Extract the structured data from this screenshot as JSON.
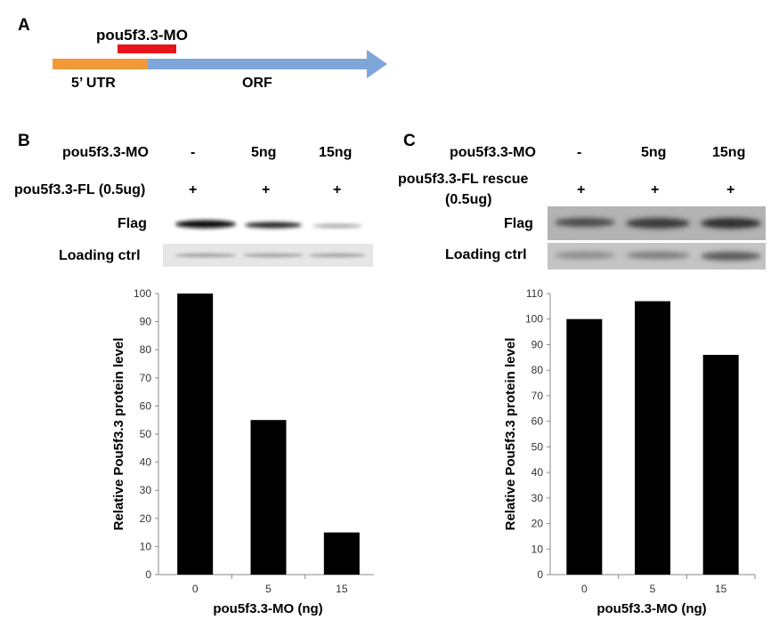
{
  "panel_a": {
    "letter": "A",
    "mo_label": "pou5f3.3-MO",
    "utr_label": "5’ UTR",
    "orf_label": "ORF",
    "colors": {
      "utr": "#f29a3a",
      "orf": "#7ea6d8",
      "mo": "#e8141c"
    }
  },
  "panel_b": {
    "letter": "B",
    "row1_label": "pou5f3.3-MO",
    "row1_values": [
      "-",
      "5ng",
      "15ng"
    ],
    "row2_label": "pou5f3.3-FL (0.5ug)",
    "row2_values": [
      "+",
      "+",
      "+"
    ],
    "blot1_label": "Flag",
    "blot2_label": "Loading ctrl"
  },
  "panel_c": {
    "letter": "C",
    "row1_label": "pou5f3.3-MO",
    "row1_values": [
      "-",
      "5ng",
      "15ng"
    ],
    "row2_label_line1": "pou5f3.3-FL rescue",
    "row2_label_line2": "(0.5ug)",
    "row2_values": [
      "+",
      "+",
      "+"
    ],
    "blot1_label": "Flag",
    "blot2_label": "Loading ctrl"
  },
  "chart_data": [
    {
      "type": "bar",
      "categories": [
        "0",
        "5",
        "15"
      ],
      "values": [
        100,
        55,
        15
      ],
      "xlabel": "pou5f3.3-MO (ng)",
      "ylabel": "Relative Pou5f3.3 protein level",
      "ylim": [
        0,
        100
      ],
      "yticks": [
        0,
        10,
        20,
        30,
        40,
        50,
        60,
        70,
        80,
        90,
        100
      ],
      "grid": false
    },
    {
      "type": "bar",
      "categories": [
        "0",
        "5",
        "15"
      ],
      "values": [
        100,
        107,
        86
      ],
      "xlabel": "pou5f3.3-MO (ng)",
      "ylabel": "Relative Pou5f3.3 protein level",
      "ylim": [
        0,
        110
      ],
      "yticks": [
        0,
        10,
        20,
        30,
        40,
        50,
        60,
        70,
        80,
        90,
        100,
        110
      ],
      "grid": false
    }
  ]
}
